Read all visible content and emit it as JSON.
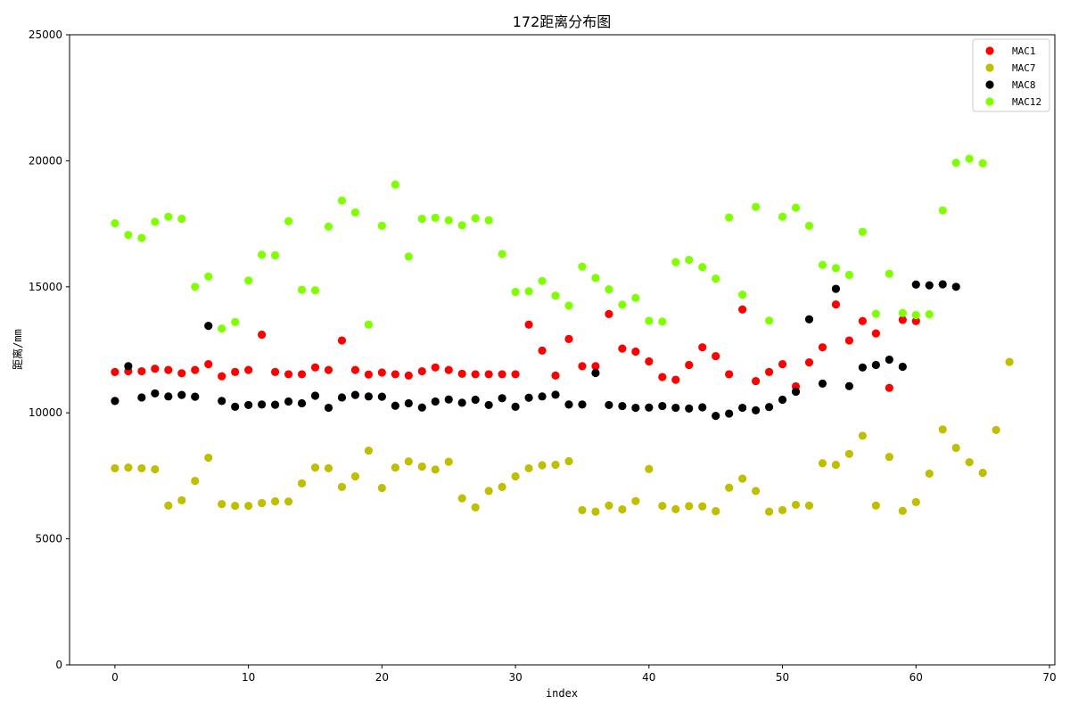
{
  "chart_data": {
    "type": "scatter",
    "title": "172距离分布图",
    "xlabel": "index",
    "ylabel": "距离/mm",
    "xlim": [
      -3.4,
      70.4
    ],
    "ylim": [
      0,
      25000
    ],
    "xticks": [
      0,
      10,
      20,
      30,
      40,
      50,
      60,
      70
    ],
    "yticks": [
      0,
      5000,
      10000,
      15000,
      20000,
      25000
    ],
    "grid": false,
    "legend_position": "upper-right",
    "series": [
      {
        "name": "MAC1",
        "color": "#ff0000",
        "x": [
          0,
          1,
          2,
          3,
          4,
          5,
          6,
          7,
          8,
          9,
          10,
          11,
          12,
          13,
          14,
          15,
          16,
          17,
          18,
          19,
          20,
          21,
          22,
          23,
          24,
          25,
          26,
          27,
          28,
          29,
          30,
          31,
          32,
          33,
          34,
          35,
          36,
          37,
          38,
          39,
          40,
          41,
          42,
          43,
          44,
          45,
          46,
          47,
          48,
          49,
          50,
          51,
          52,
          53,
          54,
          55,
          56,
          57,
          58,
          59,
          60
        ],
        "y": [
          11620,
          11650,
          11650,
          11750,
          11700,
          11570,
          11700,
          11930,
          11450,
          11620,
          11700,
          13100,
          11620,
          11530,
          11530,
          11800,
          11700,
          12870,
          11700,
          11520,
          11600,
          11530,
          11480,
          11650,
          11800,
          11700,
          11550,
          11530,
          11530,
          11530,
          11530,
          13500,
          12470,
          11480,
          12930,
          11850,
          11850,
          13920,
          12550,
          12430,
          12040,
          11420,
          11310,
          11900,
          12600,
          12250,
          11530,
          14100,
          11260,
          11620,
          11930,
          11050,
          12000,
          12600,
          14300,
          12870,
          13640,
          13150,
          10990,
          13690,
          13640
        ]
      },
      {
        "name": "MAC7",
        "color": "#bfbf00",
        "x": [
          0,
          1,
          2,
          3,
          4,
          5,
          6,
          7,
          8,
          9,
          10,
          11,
          12,
          13,
          14,
          15,
          16,
          17,
          18,
          19,
          20,
          21,
          22,
          23,
          24,
          25,
          26,
          27,
          28,
          29,
          30,
          31,
          32,
          33,
          34,
          35,
          36,
          37,
          38,
          39,
          40,
          41,
          42,
          43,
          44,
          45,
          46,
          47,
          48,
          49,
          50,
          51,
          52,
          53,
          54,
          55,
          56,
          57,
          58,
          59,
          60,
          61,
          62,
          63,
          64,
          65,
          66,
          67
        ],
        "y": [
          7800,
          7830,
          7800,
          7760,
          6320,
          6530,
          7300,
          8220,
          6380,
          6310,
          6310,
          6420,
          6490,
          6480,
          7200,
          7830,
          7800,
          7060,
          7480,
          8500,
          7020,
          7830,
          8070,
          7870,
          7750,
          8060,
          6610,
          6250,
          6900,
          7060,
          7480,
          7800,
          7920,
          7940,
          8080,
          6140,
          6080,
          6320,
          6170,
          6500,
          7770,
          6310,
          6180,
          6300,
          6290,
          6100,
          7030,
          7390,
          6900,
          6080,
          6140,
          6350,
          6320,
          8000,
          7940,
          8370,
          9090,
          6320,
          8250,
          6110,
          6460,
          7590,
          9340,
          8610,
          8040,
          7620,
          9320,
          12020
        ]
      },
      {
        "name": "MAC8",
        "color": "#000000",
        "x": [
          0,
          1,
          2,
          3,
          4,
          5,
          6,
          7,
          8,
          9,
          10,
          11,
          12,
          13,
          14,
          15,
          16,
          17,
          18,
          19,
          20,
          21,
          22,
          23,
          24,
          25,
          26,
          27,
          28,
          29,
          30,
          31,
          32,
          33,
          34,
          35,
          36,
          37,
          38,
          39,
          40,
          41,
          42,
          43,
          44,
          45,
          46,
          47,
          48,
          49,
          50,
          51,
          52,
          53,
          54,
          55,
          56,
          57,
          58,
          59,
          60,
          61,
          62,
          63
        ],
        "y": [
          10470,
          11850,
          10610,
          10770,
          10650,
          10710,
          10640,
          13450,
          10470,
          10240,
          10310,
          10330,
          10320,
          10450,
          10380,
          10680,
          10200,
          10610,
          10710,
          10650,
          10640,
          10280,
          10380,
          10210,
          10450,
          10530,
          10400,
          10520,
          10310,
          10580,
          10240,
          10600,
          10650,
          10720,
          10330,
          10330,
          11580,
          10310,
          10270,
          10200,
          10210,
          10270,
          10200,
          10170,
          10220,
          9880,
          9970,
          10200,
          10100,
          10230,
          10520,
          10840,
          13710,
          11160,
          14920,
          11060,
          11800,
          11900,
          12110,
          11830,
          15090,
          15060,
          15100,
          15000
        ]
      },
      {
        "name": "MAC12",
        "color": "#7fff00",
        "x": [
          0,
          1,
          2,
          3,
          4,
          5,
          6,
          7,
          8,
          9,
          10,
          11,
          12,
          13,
          14,
          15,
          16,
          17,
          18,
          19,
          20,
          21,
          22,
          23,
          24,
          25,
          26,
          27,
          28,
          29,
          30,
          31,
          32,
          33,
          34,
          35,
          36,
          37,
          38,
          39,
          40,
          41,
          42,
          43,
          44,
          45,
          46,
          47,
          48,
          49,
          50,
          51,
          52,
          53,
          54,
          55,
          56,
          57,
          58,
          59,
          60,
          61,
          62,
          63,
          64,
          65
        ],
        "y": [
          17520,
          17060,
          16940,
          17580,
          17780,
          17700,
          15000,
          15410,
          13340,
          13600,
          15250,
          16270,
          16250,
          17600,
          14880,
          14860,
          17390,
          18420,
          17950,
          13500,
          17420,
          19060,
          16200,
          17700,
          17740,
          17640,
          17440,
          17720,
          17640,
          16300,
          14800,
          14820,
          15230,
          14650,
          14250,
          15800,
          15350,
          14900,
          14290,
          14560,
          13650,
          13620,
          15980,
          16070,
          15780,
          15320,
          17750,
          14690,
          18170,
          13660,
          17780,
          18140,
          17420,
          15870,
          15740,
          15470,
          17180,
          13930,
          15520,
          13960,
          13880,
          13910,
          18030,
          19920,
          20080,
          19900
        ]
      }
    ]
  }
}
